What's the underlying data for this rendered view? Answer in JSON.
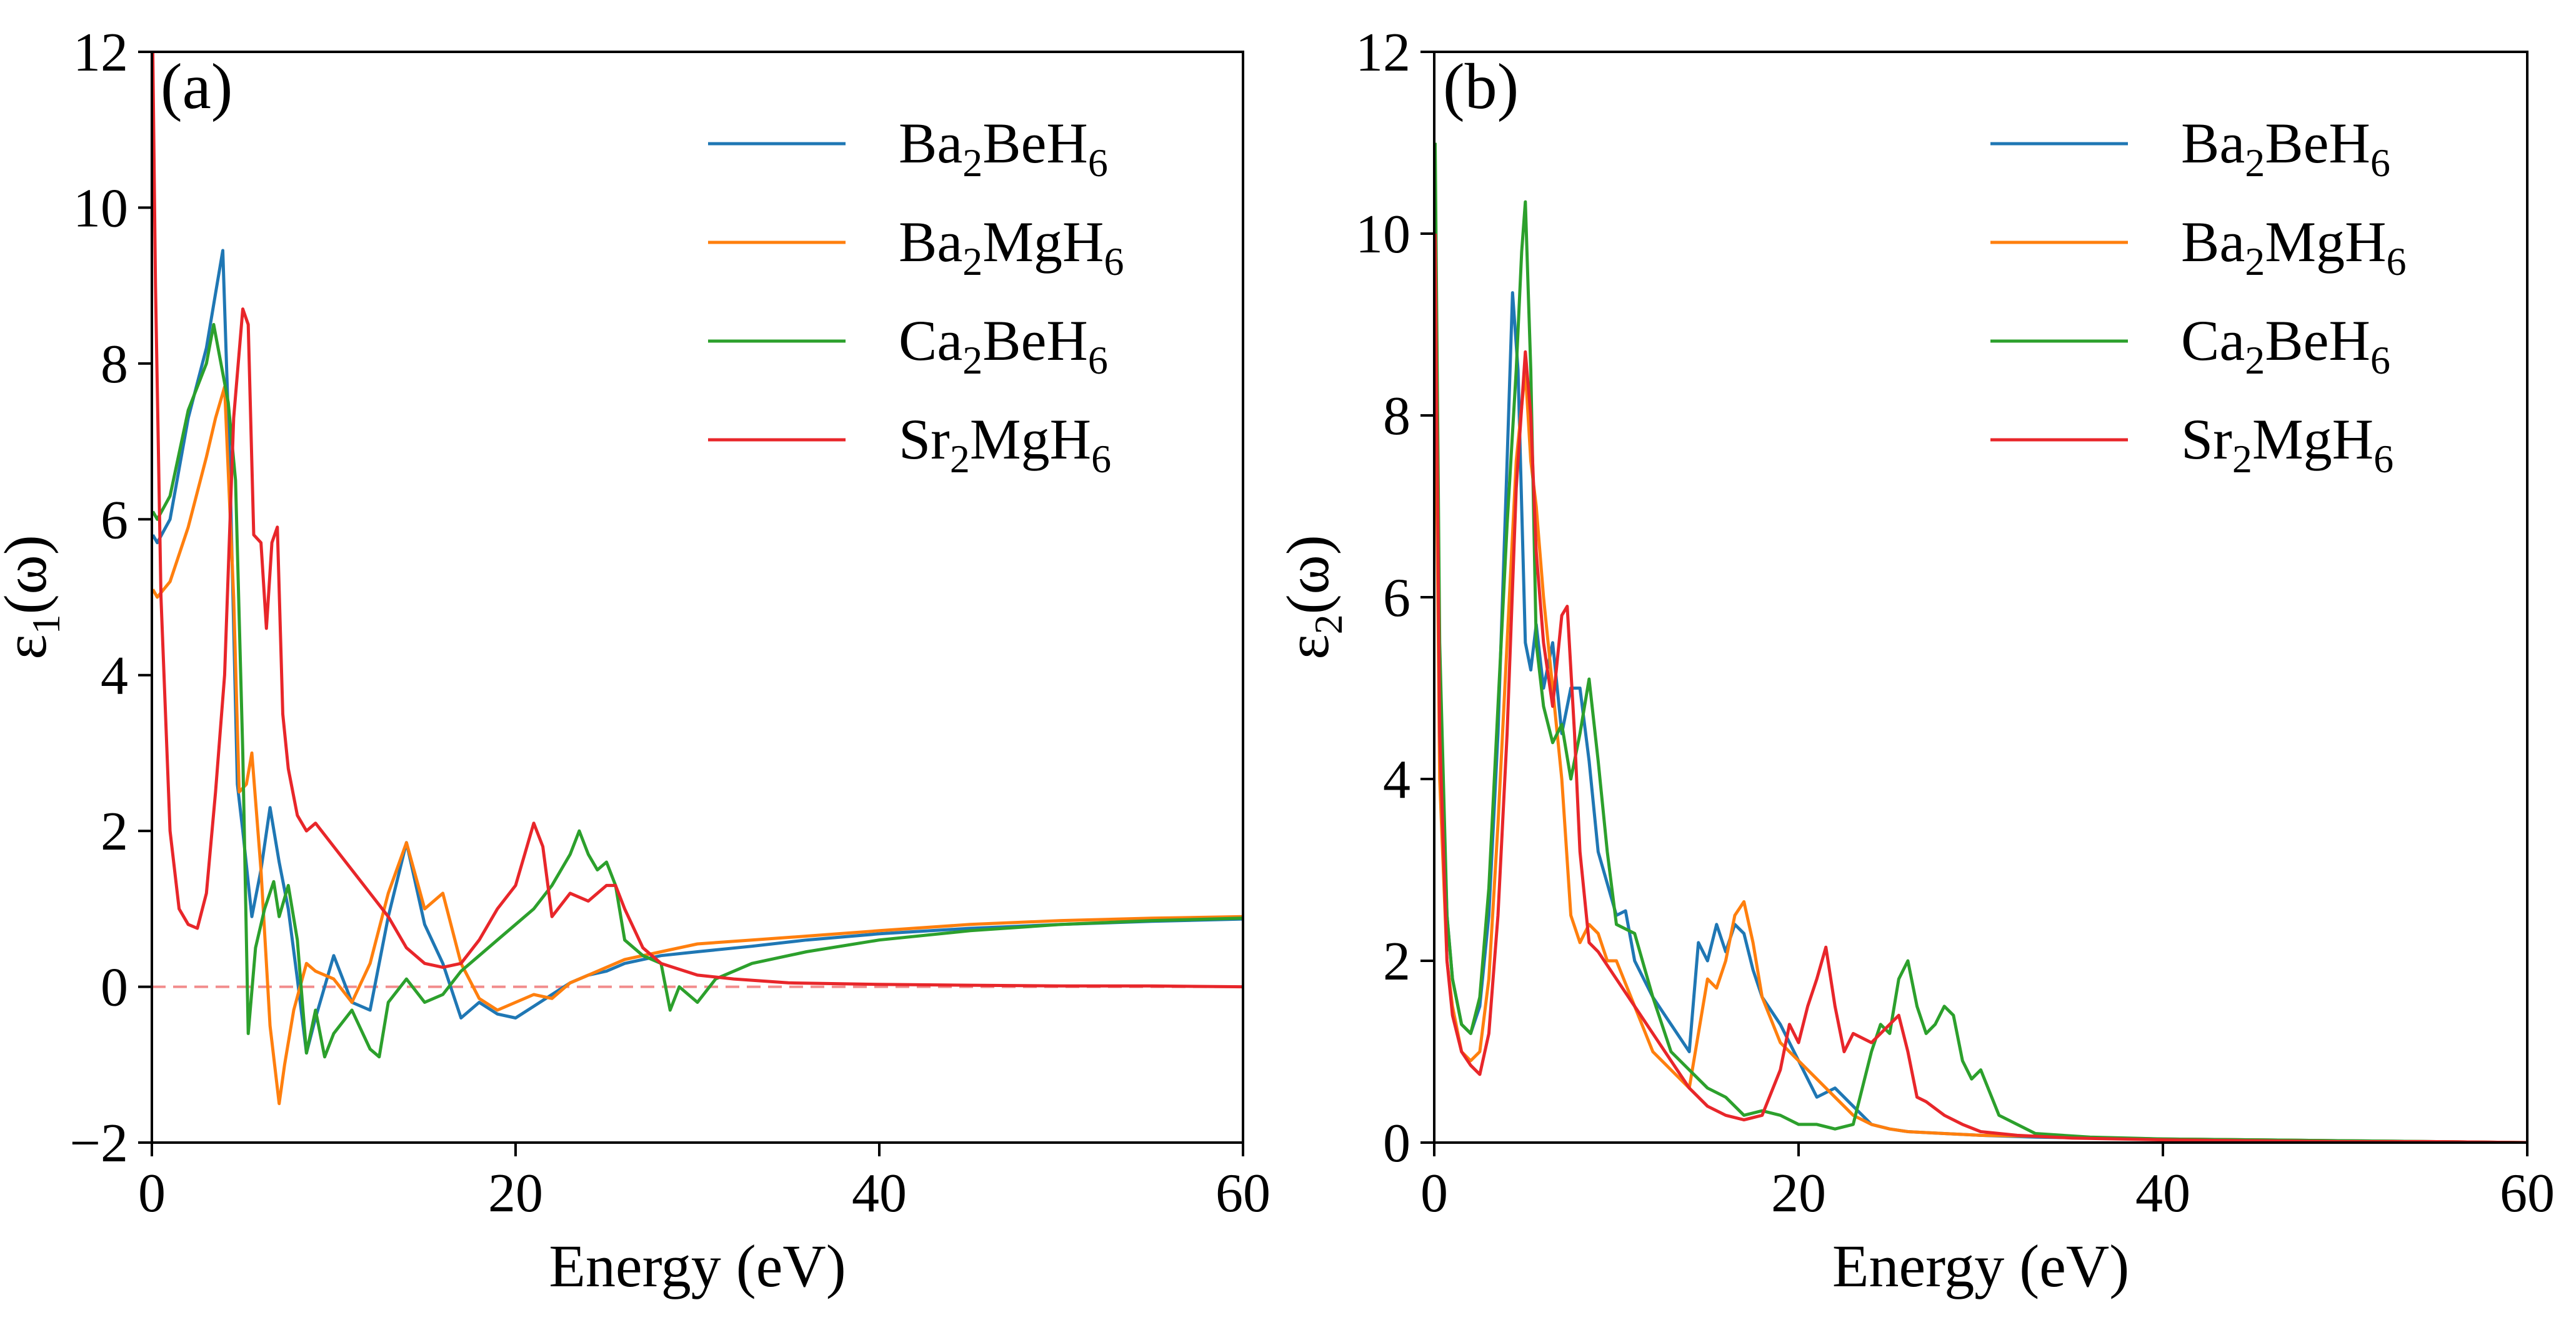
{
  "chart_data": [
    {
      "type": "line",
      "panel_label": "(a)",
      "xlabel": "Energy (eV)",
      "ylabel_parts": [
        "ε",
        "1",
        "(ω)"
      ],
      "xlim": [
        0,
        60
      ],
      "ylim": [
        -2,
        12
      ],
      "xticks": [
        0,
        20,
        40,
        60
      ],
      "yticks": [
        -2,
        0,
        2,
        4,
        6,
        8,
        10,
        12
      ],
      "zero_line": true,
      "legend_position": "top-right",
      "series": [
        {
          "name_parts": [
            "Ba",
            "2",
            "BeH",
            "6"
          ],
          "color": "#1f77b4",
          "x": [
            0.05,
            0.3,
            1,
            2,
            3,
            3.5,
            3.9,
            4.3,
            4.7,
            5.0,
            5.5,
            6.0,
            6.5,
            7.0,
            7.5,
            8.0,
            8.5,
            9.0,
            10,
            11,
            12,
            13,
            14,
            15,
            16,
            17,
            18,
            19,
            20,
            21,
            22,
            23,
            24,
            25,
            26,
            27,
            28,
            30,
            33,
            36,
            40,
            45,
            50,
            55,
            60
          ],
          "y": [
            5.8,
            5.7,
            6.0,
            7.3,
            8.2,
            8.9,
            9.45,
            6.6,
            2.6,
            2.0,
            0.9,
            1.5,
            2.3,
            1.6,
            1.0,
            0.1,
            -0.85,
            -0.4,
            0.4,
            -0.2,
            -0.3,
            0.9,
            1.85,
            0.8,
            0.3,
            -0.4,
            -0.2,
            -0.35,
            -0.4,
            -0.25,
            -0.1,
            0.05,
            0.15,
            0.2,
            0.3,
            0.35,
            0.4,
            0.45,
            0.52,
            0.6,
            0.68,
            0.75,
            0.8,
            0.84,
            0.87
          ]
        },
        {
          "name_parts": [
            "Ba",
            "2",
            "MgH",
            "6"
          ],
          "color": "#ff7f0e",
          "x": [
            0.05,
            0.3,
            1,
            2,
            3,
            3.5,
            4.0,
            4.5,
            4.8,
            5.2,
            5.5,
            6.0,
            6.5,
            7.0,
            7.3,
            7.8,
            8.5,
            9.0,
            10,
            11,
            12,
            13,
            14,
            15,
            16,
            17,
            18,
            19,
            20,
            21,
            22,
            23,
            24,
            25,
            26,
            28,
            30,
            33,
            36,
            40,
            45,
            50,
            55,
            60
          ],
          "y": [
            5.1,
            5.0,
            5.2,
            5.9,
            6.8,
            7.3,
            7.7,
            5.0,
            2.5,
            2.6,
            3.0,
            1.5,
            -0.5,
            -1.5,
            -1.0,
            -0.3,
            0.3,
            0.2,
            0.1,
            -0.2,
            0.3,
            1.2,
            1.85,
            1.0,
            1.2,
            0.3,
            -0.15,
            -0.3,
            -0.2,
            -0.1,
            -0.15,
            0.05,
            0.15,
            0.25,
            0.35,
            0.45,
            0.55,
            0.6,
            0.65,
            0.72,
            0.8,
            0.85,
            0.88,
            0.9
          ]
        },
        {
          "name_parts": [
            "Ca",
            "2",
            "BeH",
            "6"
          ],
          "color": "#2ca02c",
          "x": [
            0.05,
            0.3,
            1,
            2,
            3,
            3.4,
            3.8,
            4.2,
            4.6,
            5.0,
            5.3,
            5.7,
            6.2,
            6.7,
            7.0,
            7.5,
            8.0,
            8.5,
            9.0,
            9.5,
            10,
            11,
            12,
            12.5,
            13,
            14,
            15,
            16,
            17,
            18,
            19,
            20,
            21,
            22,
            23,
            23.5,
            24,
            24.5,
            25,
            25.5,
            26,
            27,
            28,
            28.5,
            29,
            30,
            31,
            33,
            36,
            40,
            45,
            50,
            55,
            60
          ],
          "y": [
            6.1,
            6.0,
            6.3,
            7.4,
            8.0,
            8.5,
            8.0,
            7.5,
            6.5,
            3.0,
            -0.6,
            0.5,
            1.0,
            1.35,
            0.9,
            1.3,
            0.6,
            -0.85,
            -0.3,
            -0.9,
            -0.6,
            -0.3,
            -0.8,
            -0.9,
            -0.2,
            0.1,
            -0.2,
            -0.1,
            0.2,
            0.4,
            0.6,
            0.8,
            1.0,
            1.3,
            1.7,
            2.0,
            1.7,
            1.5,
            1.6,
            1.3,
            0.6,
            0.4,
            0.3,
            -0.3,
            0.0,
            -0.2,
            0.1,
            0.3,
            0.45,
            0.6,
            0.72,
            0.8,
            0.85,
            0.88
          ]
        },
        {
          "name_parts": [
            "Sr",
            "2",
            "MgH",
            "6"
          ],
          "color": "#e8262a",
          "x": [
            0.05,
            0.2,
            0.5,
            1,
            1.5,
            2,
            2.5,
            3,
            3.5,
            4.0,
            4.5,
            5.0,
            5.3,
            5.6,
            6.0,
            6.3,
            6.6,
            6.9,
            7.2,
            7.5,
            8.0,
            8.5,
            9,
            10,
            11,
            12,
            13,
            14,
            15,
            16,
            17,
            18,
            19,
            20,
            20.5,
            21,
            21.5,
            22,
            23,
            24,
            25,
            25.5,
            26,
            27,
            28,
            30,
            32,
            35,
            40,
            45,
            50,
            55,
            60
          ],
          "y": [
            12,
            9,
            5,
            2,
            1.0,
            0.8,
            0.75,
            1.2,
            2.5,
            4.0,
            7.3,
            8.7,
            8.5,
            5.8,
            5.7,
            4.6,
            5.7,
            5.9,
            3.5,
            2.8,
            2.2,
            2.0,
            2.1,
            1.8,
            1.5,
            1.2,
            0.9,
            0.5,
            0.3,
            0.25,
            0.3,
            0.6,
            1.0,
            1.3,
            1.7,
            2.1,
            1.8,
            0.9,
            1.2,
            1.1,
            1.3,
            1.3,
            1.0,
            0.5,
            0.3,
            0.15,
            0.1,
            0.05,
            0.03,
            0.02,
            0.01,
            0.01,
            0.0
          ]
        }
      ]
    },
    {
      "type": "line",
      "panel_label": "(b)",
      "xlabel": "Energy (eV)",
      "ylabel_parts": [
        "ε",
        "2",
        "(ω)"
      ],
      "xlim": [
        0,
        60
      ],
      "ylim": [
        0,
        12
      ],
      "xticks": [
        0,
        20,
        40,
        60
      ],
      "yticks": [
        0,
        2,
        4,
        6,
        8,
        10,
        12
      ],
      "zero_line": false,
      "legend_position": "top-right",
      "series": [
        {
          "name_parts": [
            "Ba",
            "2",
            "BeH",
            "6"
          ],
          "color": "#1f77b4",
          "x": [
            0.05,
            0.3,
            0.7,
            1,
            1.5,
            2,
            2.5,
            3,
            3.5,
            4.0,
            4.3,
            4.6,
            4.8,
            5.0,
            5.3,
            5.6,
            6.0,
            6.5,
            7,
            7.5,
            8,
            8.5,
            9,
            10,
            10.5,
            11,
            12,
            13,
            14,
            14.5,
            15,
            15.5,
            16,
            16.5,
            17,
            17.5,
            18,
            19,
            20,
            21,
            22,
            23,
            24,
            25,
            26,
            28,
            30,
            33,
            36,
            40,
            45,
            50,
            55,
            60
          ],
          "y": [
            10.5,
            5.0,
            2.5,
            1.8,
            1.3,
            1.2,
            1.5,
            2.5,
            4.5,
            7.5,
            9.35,
            8.5,
            7.0,
            5.5,
            5.2,
            5.7,
            5.0,
            5.5,
            4.5,
            5.0,
            5.0,
            4.2,
            3.2,
            2.5,
            2.55,
            2.0,
            1.6,
            1.3,
            1.0,
            2.2,
            2.0,
            2.4,
            2.1,
            2.4,
            2.3,
            1.9,
            1.6,
            1.3,
            0.9,
            0.5,
            0.6,
            0.4,
            0.2,
            0.15,
            0.12,
            0.1,
            0.08,
            0.06,
            0.05,
            0.04,
            0.03,
            0.02,
            0.01,
            0.0
          ]
        },
        {
          "name_parts": [
            "Ba",
            "2",
            "MgH",
            "6"
          ],
          "color": "#ff7f0e",
          "x": [
            0.05,
            0.3,
            0.7,
            1,
            1.5,
            2,
            2.5,
            3,
            3.5,
            4.0,
            4.5,
            5.0,
            5.3,
            5.6,
            6.0,
            6.5,
            7,
            7.5,
            8,
            8.5,
            9,
            9.5,
            10,
            11,
            12,
            13,
            14,
            14.5,
            15,
            15.5,
            16,
            16.5,
            17,
            17.5,
            18,
            19,
            20,
            21,
            22,
            23,
            24,
            25,
            26,
            28,
            30,
            33,
            36,
            40,
            45,
            50,
            55,
            60
          ],
          "y": [
            9.0,
            4.0,
            2.0,
            1.5,
            1.0,
            0.9,
            1.0,
            1.8,
            3.5,
            5.5,
            7.5,
            8.5,
            7.5,
            7.0,
            6.0,
            5.0,
            4.0,
            2.5,
            2.2,
            2.4,
            2.3,
            2.0,
            2.0,
            1.5,
            1.0,
            0.8,
            0.6,
            1.2,
            1.8,
            1.7,
            2.0,
            2.5,
            2.65,
            2.2,
            1.6,
            1.1,
            0.9,
            0.7,
            0.5,
            0.3,
            0.2,
            0.15,
            0.12,
            0.1,
            0.08,
            0.07,
            0.05,
            0.04,
            0.03,
            0.02,
            0.01,
            0.0
          ]
        },
        {
          "name_parts": [
            "Ca",
            "2",
            "BeH",
            "6"
          ],
          "color": "#2ca02c",
          "x": [
            0.05,
            0.3,
            0.7,
            1,
            1.5,
            2,
            2.5,
            3,
            3.5,
            4.0,
            4.5,
            4.8,
            5.0,
            5.3,
            5.6,
            6.0,
            6.5,
            7,
            7.5,
            8,
            8.5,
            9,
            9.5,
            10,
            11,
            12,
            13,
            14,
            15,
            16,
            17,
            18,
            19,
            20,
            21,
            22,
            23,
            24,
            24.5,
            25,
            25.5,
            26,
            26.5,
            27,
            27.5,
            28,
            28.5,
            29,
            29.5,
            30,
            31,
            33,
            36,
            40,
            45,
            50,
            55,
            60
          ],
          "y": [
            11,
            5.5,
            2.5,
            1.8,
            1.3,
            1.2,
            1.6,
            2.8,
            4.8,
            6.8,
            8.5,
            9.8,
            10.35,
            8.5,
            5.5,
            4.8,
            4.4,
            4.6,
            4.0,
            4.5,
            5.1,
            4.2,
            3.2,
            2.4,
            2.3,
            1.6,
            1.0,
            0.8,
            0.6,
            0.5,
            0.3,
            0.35,
            0.3,
            0.2,
            0.2,
            0.15,
            0.2,
            1.0,
            1.3,
            1.2,
            1.8,
            2.0,
            1.5,
            1.2,
            1.3,
            1.5,
            1.4,
            0.9,
            0.7,
            0.8,
            0.3,
            0.1,
            0.06,
            0.04,
            0.03,
            0.02,
            0.01,
            0.0
          ]
        },
        {
          "name_parts": [
            "Sr",
            "2",
            "MgH",
            "6"
          ],
          "color": "#e8262a",
          "x": [
            0.05,
            0.3,
            0.7,
            1,
            1.5,
            2,
            2.5,
            3,
            3.5,
            4.0,
            4.5,
            5.0,
            5.3,
            5.6,
            6.0,
            6.5,
            7.0,
            7.3,
            7.7,
            8,
            8.5,
            9,
            10,
            11,
            12,
            13,
            14,
            15,
            16,
            17,
            18,
            19,
            19.5,
            20,
            20.5,
            21,
            21.5,
            22,
            22.5,
            23,
            24,
            25,
            25.5,
            26,
            26.5,
            27,
            28,
            29,
            30,
            32,
            35,
            40,
            45,
            50,
            55,
            60
          ],
          "y": [
            10,
            4.5,
            2.0,
            1.4,
            1.0,
            0.85,
            0.75,
            1.2,
            2.5,
            4.5,
            7.2,
            8.7,
            8.0,
            6.5,
            5.5,
            4.8,
            5.8,
            5.9,
            4.5,
            3.2,
            2.2,
            2.1,
            1.8,
            1.5,
            1.2,
            0.9,
            0.6,
            0.4,
            0.3,
            0.25,
            0.3,
            0.8,
            1.3,
            1.1,
            1.5,
            1.8,
            2.15,
            1.5,
            1.0,
            1.2,
            1.1,
            1.3,
            1.4,
            1.0,
            0.5,
            0.45,
            0.3,
            0.2,
            0.12,
            0.08,
            0.05,
            0.03,
            0.02,
            0.01,
            0.01,
            0.0
          ]
        }
      ]
    }
  ]
}
